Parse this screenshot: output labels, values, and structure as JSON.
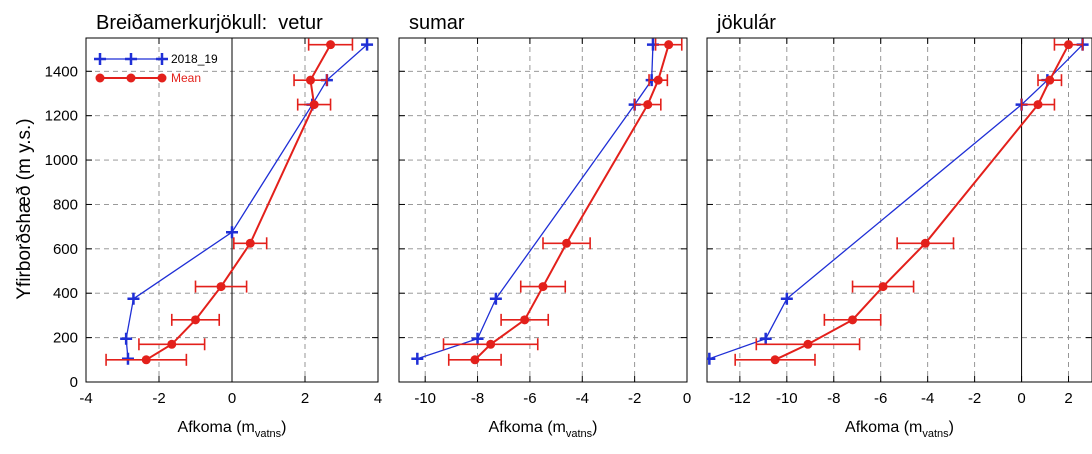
{
  "figure": {
    "ylabel": "Yfirborðshæð (m y.s.)"
  },
  "colors": {
    "series_2018_19": "#1f2fd6",
    "mean": "#e3201b",
    "grid": "#8c8c8c",
    "axis": "#000000"
  },
  "chart_data": [
    {
      "type": "line",
      "title": "Breiðamerkurjökull:  vetur",
      "xlabel": "Afkoma (m",
      "xlabel_sub": "vatns",
      "xlabel_end": ")",
      "xlim": [
        -4,
        4
      ],
      "xticks": [
        -4,
        -2,
        0,
        2,
        4
      ],
      "ylim": [
        0,
        1550
      ],
      "yticks": [
        0,
        200,
        400,
        600,
        800,
        1000,
        1200,
        1400
      ],
      "grid": true,
      "legend": "top-left",
      "series": [
        {
          "name": "2018_19",
          "marker": "plus",
          "points": [
            [
              3.7,
              1520
            ],
            [
              2.6,
              1360
            ],
            [
              2.2,
              1250
            ],
            [
              0.0,
              675
            ],
            [
              -2.7,
              375
            ],
            [
              -2.9,
              195
            ],
            [
              -2.85,
              105
            ]
          ]
        },
        {
          "name": "Mean",
          "marker": "circle",
          "points": [
            [
              2.7,
              1520
            ],
            [
              2.15,
              1360
            ],
            [
              2.25,
              1250
            ],
            [
              0.5,
              625
            ],
            [
              -0.3,
              430
            ],
            [
              -1.0,
              280
            ],
            [
              -1.65,
              170
            ],
            [
              -2.35,
              100
            ]
          ],
          "errors": [
            0.6,
            0.45,
            0.45,
            0.45,
            0.7,
            0.65,
            0.9,
            1.1
          ]
        }
      ]
    },
    {
      "type": "line",
      "title": "sumar",
      "xlabel": "Afkoma (m",
      "xlabel_sub": "vatns",
      "xlabel_end": ")",
      "xlim": [
        -11,
        0
      ],
      "xticks": [
        -10,
        -8,
        -6,
        -4,
        -2,
        0
      ],
      "ylim": [
        0,
        1550
      ],
      "grid": true,
      "series": [
        {
          "name": "2018_19",
          "marker": "plus",
          "points": [
            [
              -1.3,
              1520
            ],
            [
              -1.35,
              1360
            ],
            [
              -2.0,
              1250
            ],
            [
              -7.3,
              375
            ],
            [
              -8.0,
              195
            ],
            [
              -10.3,
              105
            ]
          ]
        },
        {
          "name": "Mean",
          "marker": "circle",
          "points": [
            [
              -0.7,
              1520
            ],
            [
              -1.1,
              1360
            ],
            [
              -1.5,
              1250
            ],
            [
              -4.6,
              625
            ],
            [
              -5.5,
              430
            ],
            [
              -6.2,
              280
            ],
            [
              -7.5,
              170
            ],
            [
              -8.1,
              100
            ]
          ],
          "errors": [
            0.5,
            0.35,
            0.5,
            0.9,
            0.85,
            0.9,
            1.8,
            1.0
          ]
        }
      ]
    },
    {
      "type": "line",
      "title": "jökulár",
      "xlabel": "Afkoma (m",
      "xlabel_sub": "vatns",
      "xlabel_end": ")",
      "xlim": [
        -13.4,
        3
      ],
      "xticks": [
        -12,
        -10,
        -8,
        -6,
        -4,
        -2,
        0,
        2
      ],
      "ylim": [
        0,
        1550
      ],
      "grid": true,
      "series": [
        {
          "name": "2018_19",
          "marker": "plus",
          "points": [
            [
              2.6,
              1520
            ],
            [
              1.1,
              1360
            ],
            [
              0.0,
              1250
            ],
            [
              -10.0,
              375
            ],
            [
              -10.9,
              195
            ],
            [
              -13.3,
              105
            ]
          ]
        },
        {
          "name": "Mean",
          "marker": "circle",
          "points": [
            [
              2.0,
              1520
            ],
            [
              1.2,
              1360
            ],
            [
              0.7,
              1250
            ],
            [
              -4.1,
              625
            ],
            [
              -5.9,
              430
            ],
            [
              -7.2,
              280
            ],
            [
              -9.1,
              170
            ],
            [
              -10.5,
              100
            ]
          ],
          "errors": [
            0.6,
            0.5,
            0.7,
            1.2,
            1.3,
            1.2,
            2.2,
            1.7
          ]
        }
      ]
    }
  ]
}
